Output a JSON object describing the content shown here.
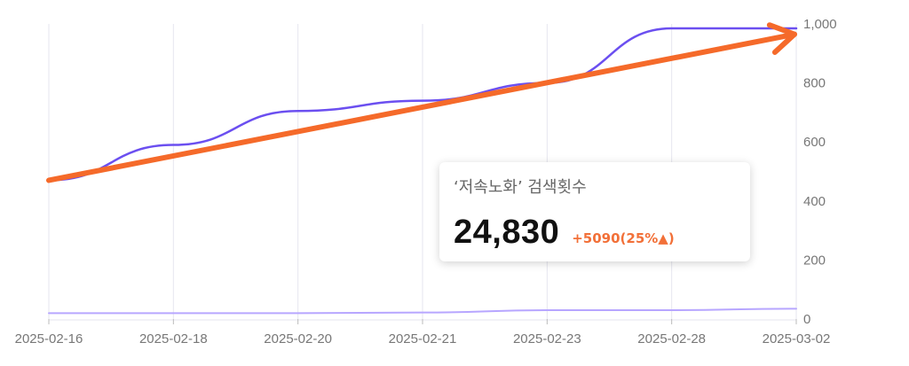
{
  "chart_data": {
    "type": "line",
    "x": [
      "2025-02-16",
      "2025-02-18",
      "2025-02-20",
      "2025-02-21",
      "2025-02-23",
      "2025-02-28",
      "2025-03-02"
    ],
    "ylim": [
      0,
      1000
    ],
    "yticks": [
      "0",
      "200",
      "400",
      "600",
      "800",
      "1,000"
    ],
    "grid": "vertical",
    "series": [
      {
        "color": "#6b4ff0",
        "values": [
          470,
          590,
          705,
          740,
          800,
          985,
          985
        ]
      },
      {
        "color": "#b7a6ff",
        "values": [
          20,
          20,
          20,
          22,
          30,
          30,
          35
        ]
      }
    ],
    "trend_arrow": {
      "color": "#f56a2a",
      "from": {
        "x": "2025-02-16",
        "y": 470
      },
      "to": {
        "x": "2025-03-02",
        "y": 980
      }
    }
  },
  "tooltip": {
    "title": "‘저속노화’ 검색횟수",
    "value": "24,830",
    "change": "+5090(25%▲)"
  }
}
